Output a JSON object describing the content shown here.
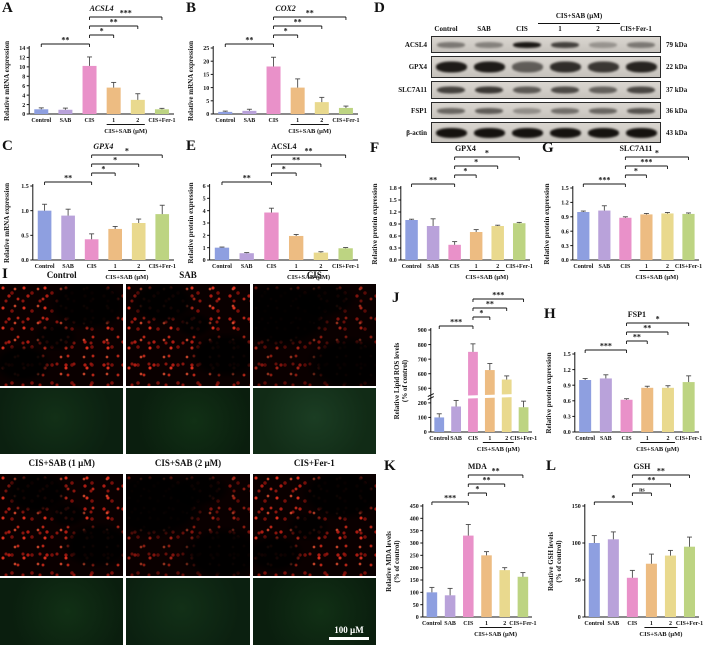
{
  "figure_bg": "#ffffff",
  "bar_colors": [
    "#8e9fe0",
    "#b9a2da",
    "#e991c9",
    "#edbc82",
    "#e9d98e",
    "#bdd482"
  ],
  "error_bar_color": "#4a4a4a",
  "group_label": "CIS+SAB (µM)",
  "categories": [
    "Control",
    "SAB",
    "CIS",
    "1",
    "2",
    "CIS+Fer-1"
  ],
  "chart_data": [
    {
      "id": "A",
      "type": "bar",
      "title": "ACSL4",
      "italic": true,
      "ylabel": "Relative mRNA expression",
      "ylim": [
        0,
        14
      ],
      "yticks": [
        "0",
        "2",
        "4",
        "6",
        "8",
        "10",
        "12",
        "14"
      ],
      "categories": [
        "Control",
        "SAB",
        "CIS",
        "1",
        "2",
        "CIS+Fer-1"
      ],
      "values": [
        1.0,
        0.9,
        10.2,
        5.6,
        3.0,
        1.0
      ],
      "errors": [
        0.3,
        0.35,
        1.9,
        1.1,
        1.3,
        0.2
      ],
      "sig": [
        {
          "a": 0,
          "b": 2,
          "label": "**"
        },
        {
          "a": 2,
          "b": 3,
          "label": "*"
        },
        {
          "a": 2,
          "b": 4,
          "label": "**"
        },
        {
          "a": 2,
          "b": 5,
          "label": "***"
        }
      ]
    },
    {
      "id": "B",
      "type": "bar",
      "title": "COX2",
      "italic": true,
      "ylabel": "Relative mRNA expression",
      "ylim": [
        0,
        25
      ],
      "yticks": [
        "0",
        "5",
        "10",
        "15",
        "20",
        "25"
      ],
      "categories": [
        "Control",
        "SAB",
        "CIS",
        "1",
        "2",
        "CIS+Fer-1"
      ],
      "values": [
        0.8,
        1.2,
        18.0,
        10.0,
        4.5,
        2.3
      ],
      "errors": [
        0.3,
        0.6,
        3.5,
        3.3,
        1.8,
        0.7
      ],
      "sig": [
        {
          "a": 0,
          "b": 2,
          "label": "**"
        },
        {
          "a": 2,
          "b": 3,
          "label": "*"
        },
        {
          "a": 2,
          "b": 4,
          "label": "**"
        },
        {
          "a": 2,
          "b": 5,
          "label": "**"
        }
      ]
    },
    {
      "id": "C",
      "type": "bar",
      "title": "GPX4",
      "italic": true,
      "ylabel": "Relative mRNA expression",
      "ylim": [
        0,
        1.5
      ],
      "yticks": [
        "0.0",
        "0.5",
        "1.0",
        "1.5"
      ],
      "categories": [
        "Control",
        "SAB",
        "CIS",
        "1",
        "2",
        "CIS+Fer-1"
      ],
      "values": [
        1.0,
        0.9,
        0.42,
        0.63,
        0.75,
        0.93
      ],
      "errors": [
        0.13,
        0.13,
        0.11,
        0.05,
        0.08,
        0.18
      ],
      "sig": [
        {
          "a": 0,
          "b": 2,
          "label": "**"
        },
        {
          "a": 2,
          "b": 3,
          "label": "*"
        },
        {
          "a": 2,
          "b": 4,
          "label": "*"
        },
        {
          "a": 2,
          "b": 5,
          "label": "*"
        }
      ]
    },
    {
      "id": "E",
      "type": "bar",
      "title": "ACSL4",
      "italic": false,
      "ylabel": "Relative protein expression",
      "ylim": [
        0,
        6
      ],
      "yticks": [
        "0",
        "1",
        "2",
        "3",
        "4",
        "5",
        "6"
      ],
      "categories": [
        "Control",
        "SAB",
        "CIS",
        "1",
        "2",
        "CIS+Fer-1"
      ],
      "values": [
        1.0,
        0.55,
        3.85,
        1.95,
        0.6,
        0.95
      ],
      "errors": [
        0.05,
        0.05,
        0.35,
        0.12,
        0.07,
        0.06
      ],
      "sig": [
        {
          "a": 0,
          "b": 2,
          "label": "**"
        },
        {
          "a": 2,
          "b": 3,
          "label": "*"
        },
        {
          "a": 2,
          "b": 4,
          "label": "**"
        },
        {
          "a": 2,
          "b": 5,
          "label": "**"
        }
      ]
    },
    {
      "id": "F",
      "type": "bar",
      "title": "GPX4",
      "italic": false,
      "ylabel": "Relative protein expression",
      "ylim": [
        0,
        1.8
      ],
      "yticks": [
        "0.0",
        "0.3",
        "0.6",
        "0.9",
        "1.2",
        "1.5",
        "1.8"
      ],
      "categories": [
        "Control",
        "SAB",
        "CIS",
        "1",
        "2",
        "CIS+Fer-1"
      ],
      "values": [
        1.0,
        0.85,
        0.38,
        0.7,
        0.85,
        0.92
      ],
      "errors": [
        0.02,
        0.18,
        0.08,
        0.06,
        0.02,
        0.02
      ],
      "sig": [
        {
          "a": 0,
          "b": 2,
          "label": "**"
        },
        {
          "a": 2,
          "b": 3,
          "label": "*"
        },
        {
          "a": 2,
          "b": 4,
          "label": "*"
        },
        {
          "a": 2,
          "b": 5,
          "label": "*"
        }
      ]
    },
    {
      "id": "G",
      "type": "bar",
      "title": "SLC7A11",
      "italic": false,
      "ylabel": "Relative protein expression",
      "ylim": [
        0,
        1.5
      ],
      "yticks": [
        "0.0",
        "0.3",
        "0.6",
        "0.9",
        "1.2",
        "1.5"
      ],
      "categories": [
        "Control",
        "SAB",
        "CIS",
        "1",
        "2",
        "CIS+Fer-1"
      ],
      "values": [
        1.0,
        1.03,
        0.88,
        0.95,
        0.97,
        0.96
      ],
      "errors": [
        0.02,
        0.1,
        0.02,
        0.02,
        0.02,
        0.02
      ],
      "sig": [
        {
          "a": 0,
          "b": 2,
          "label": "***"
        },
        {
          "a": 2,
          "b": 3,
          "label": "*"
        },
        {
          "a": 2,
          "b": 4,
          "label": "***"
        },
        {
          "a": 2,
          "b": 5,
          "label": "*"
        }
      ]
    },
    {
      "id": "H",
      "type": "bar",
      "title": "FSP1",
      "italic": false,
      "ylabel": "Relative protein expression",
      "ylim": [
        0,
        1.5
      ],
      "yticks": [
        "0.0",
        "0.3",
        "0.6",
        "0.9",
        "1.2",
        "1.5"
      ],
      "categories": [
        "Control",
        "SAB",
        "CIS",
        "1",
        "2",
        "CIS+Fer-1"
      ],
      "values": [
        1.0,
        1.03,
        0.62,
        0.85,
        0.85,
        0.96
      ],
      "errors": [
        0.03,
        0.07,
        0.02,
        0.03,
        0.04,
        0.12
      ],
      "sig": [
        {
          "a": 0,
          "b": 2,
          "label": "***"
        },
        {
          "a": 2,
          "b": 3,
          "label": "**"
        },
        {
          "a": 2,
          "b": 4,
          "label": "**"
        },
        {
          "a": 2,
          "b": 5,
          "label": "*"
        }
      ]
    },
    {
      "id": "J",
      "type": "bar",
      "title": "",
      "italic": false,
      "ylabel": "Relative Lipid ROS levels\n(% of control)",
      "ylim": [
        0,
        900
      ],
      "yticks": [
        "0",
        "100",
        "200",
        "500",
        "600",
        "700",
        "800",
        "900"
      ],
      "break_after": 2,
      "categories": [
        "Control",
        "SAB",
        "CIS",
        "1",
        "2",
        "CIS+Fer-1"
      ],
      "values": [
        100,
        175,
        750,
        625,
        560,
        170
      ],
      "errors": [
        25,
        75,
        55,
        45,
        25,
        65
      ],
      "sig": [
        {
          "a": 0,
          "b": 2,
          "label": "***"
        },
        {
          "a": 2,
          "b": 3,
          "label": "*"
        },
        {
          "a": 2,
          "b": 4,
          "label": "**"
        },
        {
          "a": 2,
          "b": 5,
          "label": "***"
        }
      ]
    },
    {
      "id": "K",
      "type": "bar",
      "title": "MDA",
      "italic": false,
      "ylabel": "Relative MDA levels\n(% of control)",
      "ylim": [
        0,
        450
      ],
      "yticks": [
        "0",
        "50",
        "100",
        "150",
        "200",
        "250",
        "300",
        "350",
        "400",
        "450"
      ],
      "categories": [
        "Control",
        "SAB",
        "CIS",
        "1",
        "2",
        "CIS+Fer-1"
      ],
      "values": [
        100,
        88,
        330,
        250,
        190,
        163
      ],
      "errors": [
        20,
        28,
        45,
        15,
        10,
        17
      ],
      "sig": [
        {
          "a": 0,
          "b": 2,
          "label": "***"
        },
        {
          "a": 2,
          "b": 3,
          "label": "*"
        },
        {
          "a": 2,
          "b": 4,
          "label": "**"
        },
        {
          "a": 2,
          "b": 5,
          "label": "**"
        }
      ]
    },
    {
      "id": "L",
      "type": "bar",
      "title": "GSH",
      "italic": false,
      "ylabel": "Relative GSH levels\n(% of control)",
      "ylim": [
        0,
        150
      ],
      "yticks": [
        "0",
        "50",
        "100",
        "150"
      ],
      "categories": [
        "Control",
        "SAB",
        "CIS",
        "1",
        "2",
        "CIS+Fer-1"
      ],
      "values": [
        100,
        105,
        53,
        72,
        83,
        95
      ],
      "errors": [
        10,
        10,
        10,
        13,
        7,
        13
      ],
      "sig": [
        {
          "a": 0,
          "b": 2,
          "label": "*"
        },
        {
          "a": 2,
          "b": 3,
          "label": "ns"
        },
        {
          "a": 2,
          "b": 4,
          "label": "**"
        },
        {
          "a": 2,
          "b": 5,
          "label": "**"
        }
      ]
    }
  ],
  "blot": {
    "letter": "D",
    "header": "CIS+SAB (µM)",
    "lanes": [
      "Control",
      "SAB",
      "CIS",
      "1",
      "2",
      "CIS+Fer-1"
    ],
    "rows": [
      {
        "protein": "ACSL4",
        "kda": "79 kDa",
        "band_h": 6,
        "bands": [
          0.45,
          0.4,
          0.97,
          0.75,
          0.3,
          0.45
        ]
      },
      {
        "protein": "GPX4",
        "kda": "22 kDa",
        "band_h": 11,
        "bands": [
          0.95,
          0.95,
          0.6,
          0.85,
          0.8,
          0.9
        ]
      },
      {
        "protein": "SLC7A11",
        "kda": "37 kDa",
        "band_h": 7,
        "bands": [
          0.75,
          0.8,
          0.62,
          0.7,
          0.58,
          0.72
        ]
      },
      {
        "protein": "FSP1",
        "kda": "36 kDa",
        "band_h": 6,
        "bands": [
          0.55,
          0.6,
          0.33,
          0.5,
          0.55,
          0.65
        ]
      },
      {
        "protein": "β-actin",
        "kda": "43 kDa",
        "band_h": 10,
        "bands": [
          1,
          1,
          1,
          1,
          1,
          1
        ]
      }
    ]
  },
  "microscopy": {
    "letter": "I",
    "column_labels_top": [
      "Control",
      "SAB",
      "CIS"
    ],
    "column_labels_bottom": [
      "CIS+SAB (1 µM)",
      "CIS+SAB (2 µM)",
      "CIS+Fer-1"
    ],
    "channels": [
      "red",
      "green"
    ],
    "scale_bar": "100 µM"
  }
}
